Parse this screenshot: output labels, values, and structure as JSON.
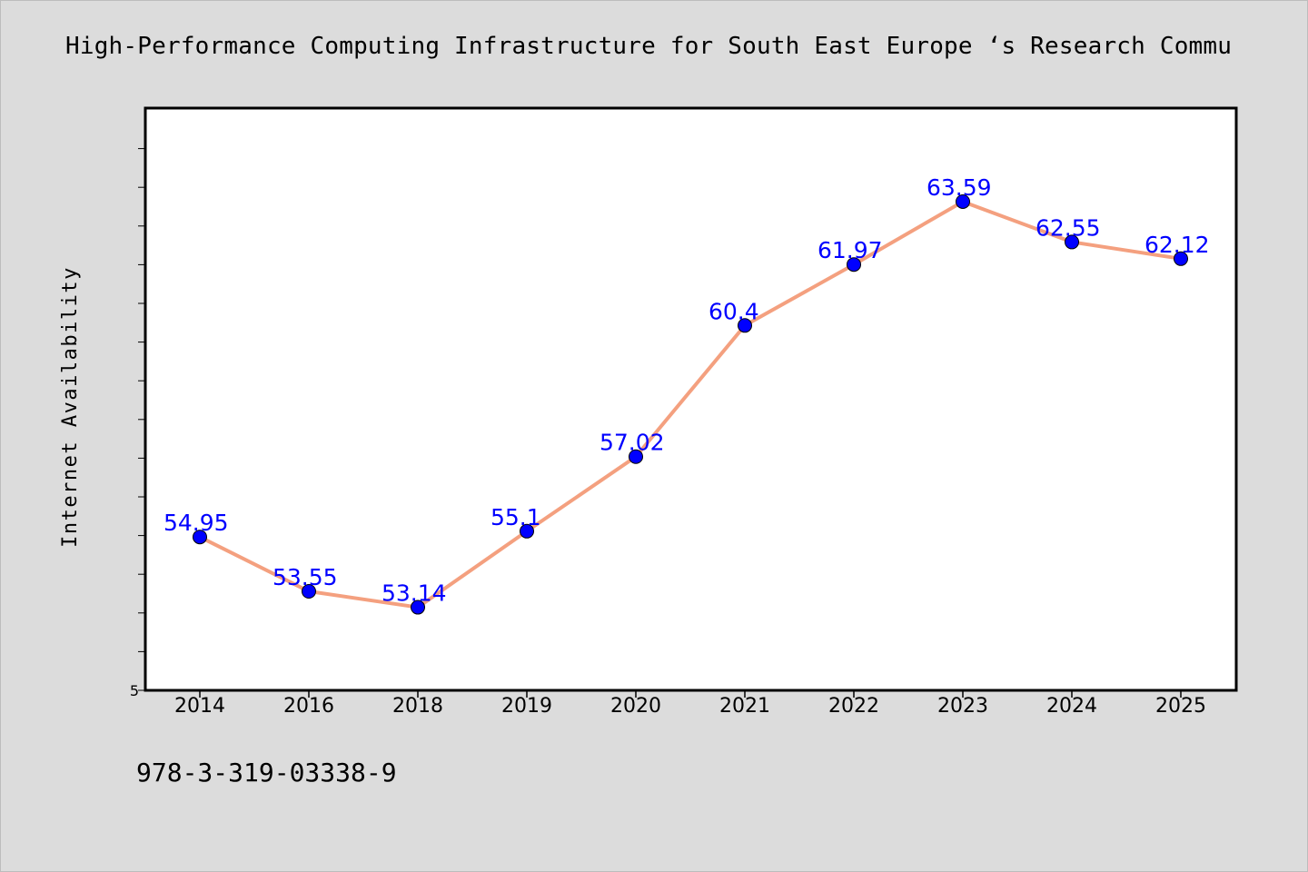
{
  "title": "High-Performance Computing Infrastructure for South East Europe ‘s Research Commu",
  "caption": "978-3-319-03338-9",
  "colors": {
    "line": "#f4a07f",
    "marker": "#0000ff",
    "label": "#0000ff",
    "background": "#dcdcdc",
    "plot_background": "#ffffff"
  },
  "chart_data": {
    "type": "line",
    "categories": [
      "2014",
      "2016",
      "2018",
      "2019",
      "2020",
      "2021",
      "2022",
      "2023",
      "2024",
      "2025"
    ],
    "series": [
      {
        "values": [
          54.95,
          53.55,
          53.14,
          55.1,
          57.02,
          60.4,
          61.97,
          63.59,
          62.55,
          62.12
        ],
        "labels": [
          "54.95",
          "53.55",
          "53.14",
          "55.1",
          "57.02",
          "60.4",
          "61.97",
          "63.59",
          "62.55",
          "62.12"
        ]
      }
    ],
    "xlabel": "",
    "ylabel": "Internet Availability",
    "y_tick_labels": [
      "5"
    ],
    "ylim": [
      51.0,
      66.0
    ],
    "grid": false,
    "legend": "none"
  }
}
